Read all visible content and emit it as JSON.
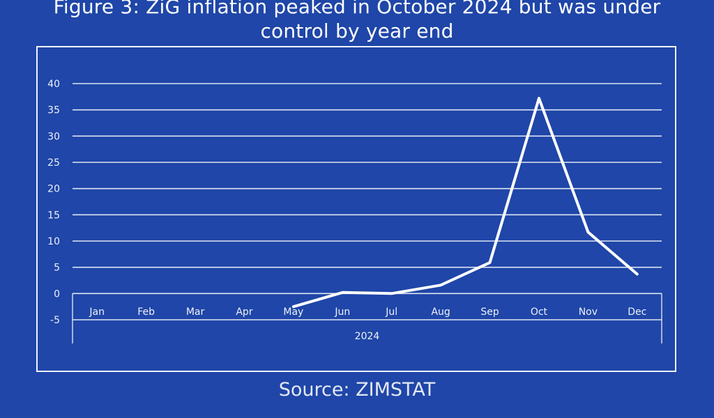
{
  "title_lines": [
    "Figure 3: ZiG inflation peaked in October 2024 but was under",
    "control by year end"
  ],
  "source": "Source: ZIMSTAT",
  "colors": {
    "background": "#1f46a8",
    "line": "#ffffff",
    "grid": "#dfe5f3"
  },
  "chart_data": {
    "type": "line",
    "title": "Figure 3: ZiG inflation peaked in October 2024 but was under control by year end",
    "xlabel": "",
    "ylabel": "",
    "categories": [
      "Jan",
      "Feb",
      "Mar",
      "Apr",
      "May",
      "Jun",
      "Jul",
      "Aug",
      "Sep",
      "Oct",
      "Nov",
      "Dec"
    ],
    "group_label": "2024",
    "series": [
      {
        "values": [
          null,
          null,
          null,
          null,
          -2.5,
          0.2,
          0.0,
          1.6,
          5.9,
          37.2,
          11.7,
          3.7
        ]
      }
    ],
    "ylim": [
      -5,
      40
    ],
    "yticks": [
      40,
      35,
      30,
      25,
      20,
      15,
      10,
      5,
      0,
      -5
    ],
    "grid": true,
    "legend": "none"
  }
}
